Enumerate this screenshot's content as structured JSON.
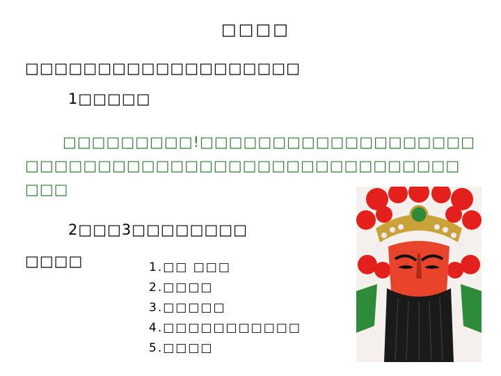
{
  "slide": {
    "title": "□□□□",
    "intro": "□□□□□□□□□□□□□□□□□□□",
    "item1": "1□□□□□",
    "green_lines": [
      "□□□□□□□□□!□□□□□□□□□□□□□□□□□□□",
      "□□□□□□□□□□□□□□□□□□□□□□□□□□□□□□",
      "□□□"
    ],
    "item2": "2□□□3□□□□□□□□",
    "tip_label": "□□□□",
    "list": [
      "1.□□ □□□",
      "2.□□□□",
      "3.□□□□□",
      "4.□□□□□□□□□□□",
      "5.□□□□"
    ]
  },
  "colors": {
    "green_text": "#2f7a2f",
    "mask_face": "#e8442c",
    "beard": "#1a1a1a",
    "headdress_red": "#e3201b"
  },
  "image": {
    "name": "opera-mask"
  }
}
